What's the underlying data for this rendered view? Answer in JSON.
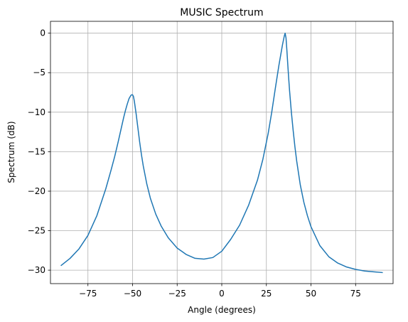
{
  "chart_data": {
    "type": "line",
    "title": "MUSIC Spectrum",
    "xlabel": "Angle (degrees)",
    "ylabel": "Spectrum (dB)",
    "xlim": [
      -96,
      96
    ],
    "ylim": [
      -31.7,
      1.5
    ],
    "xticks": [
      -75,
      -50,
      -25,
      0,
      25,
      50,
      75
    ],
    "xtick_labels": [
      "−75",
      "−50",
      "−25",
      "0",
      "25",
      "50",
      "75"
    ],
    "yticks": [
      0,
      -5,
      -10,
      -15,
      -20,
      -25,
      -30
    ],
    "ytick_labels": [
      "0",
      "−5",
      "−10",
      "−15",
      "−20",
      "−25",
      "−30"
    ],
    "grid": true,
    "line_color": "#1f77b4",
    "series": [
      {
        "x": [
          -90,
          -85,
          -80,
          -75,
          -70,
          -65,
          -62,
          -60,
          -58,
          -56,
          -55,
          -54,
          -53,
          -52,
          -51,
          -50.5,
          -50,
          -49.5,
          -49,
          -48,
          -47,
          -46,
          -45,
          -44,
          -42,
          -40,
          -37,
          -34,
          -30,
          -25,
          -20,
          -15,
          -10,
          -5,
          0,
          5,
          10,
          15,
          20,
          23,
          26,
          28,
          30,
          32,
          33,
          34,
          35,
          35.5,
          36,
          36.5,
          37,
          37.5,
          38,
          39,
          40,
          41,
          42,
          44,
          46,
          48,
          50,
          55,
          60,
          65,
          70,
          75,
          80,
          85,
          90
        ],
        "y": [
          -29.4,
          -28.5,
          -27.3,
          -25.6,
          -23.1,
          -19.7,
          -17.3,
          -15.6,
          -13.7,
          -11.7,
          -10.7,
          -9.8,
          -9.0,
          -8.3,
          -7.9,
          -7.8,
          -7.8,
          -8.0,
          -8.6,
          -10.2,
          -12.0,
          -13.8,
          -15.4,
          -16.8,
          -19.1,
          -20.9,
          -22.9,
          -24.4,
          -25.9,
          -27.2,
          -28.0,
          -28.5,
          -28.6,
          -28.4,
          -27.6,
          -26.1,
          -24.3,
          -21.8,
          -18.6,
          -16.0,
          -12.7,
          -10.0,
          -7.0,
          -4.1,
          -2.8,
          -1.5,
          -0.4,
          0.0,
          -0.6,
          -2.2,
          -4.0,
          -5.7,
          -7.3,
          -10.0,
          -12.3,
          -14.4,
          -16.2,
          -19.2,
          -21.4,
          -23.1,
          -24.5,
          -26.9,
          -28.3,
          -29.1,
          -29.6,
          -29.9,
          -30.1,
          -30.2,
          -30.3
        ]
      }
    ]
  }
}
